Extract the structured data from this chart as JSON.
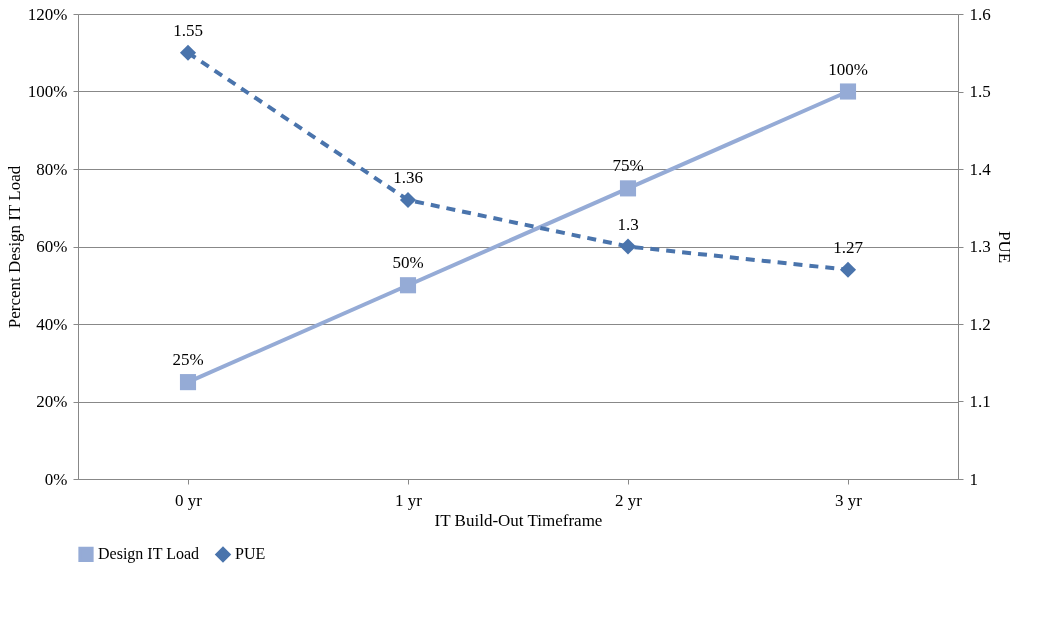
{
  "chart_data": {
    "type": "line",
    "xlabel": "IT Build-Out Timeframe",
    "ylabel": "Percent Design IT Load",
    "y2label": "PUE",
    "categories": [
      "0 yr",
      "1 yr",
      "2 yr",
      "3 yr"
    ],
    "series": [
      {
        "name": "Design IT Load",
        "color": "#95abd6",
        "values": [
          25,
          50,
          75,
          100
        ],
        "value_labels": [
          "25%",
          "50%",
          "75%",
          "100%"
        ],
        "marker": "square",
        "line_style": "solid"
      },
      {
        "name": "PUE",
        "color": "#4a74ac",
        "values": [
          1.55,
          1.36,
          1.3,
          1.27
        ],
        "value_labels": [
          "1.55",
          "1.36",
          "1.3",
          "1.27"
        ],
        "marker": "diamond",
        "line_style": "dashed",
        "axis": "y2"
      }
    ],
    "ylim": [
      0,
      120
    ],
    "yticks": [
      {
        "value": 0,
        "label": "0%"
      },
      {
        "value": 20,
        "label": "20%"
      },
      {
        "value": 40,
        "label": "40%"
      },
      {
        "value": 60,
        "label": "60%"
      },
      {
        "value": 80,
        "label": "80%"
      },
      {
        "value": 100,
        "label": "100%"
      },
      {
        "value": 120,
        "label": "120%"
      }
    ],
    "y2lim": [
      1,
      1.6
    ],
    "y2ticks": [
      1,
      1.1,
      1.2,
      1.3,
      1.4,
      1.5,
      1.6
    ],
    "grid": "y",
    "legend": "bottom"
  }
}
